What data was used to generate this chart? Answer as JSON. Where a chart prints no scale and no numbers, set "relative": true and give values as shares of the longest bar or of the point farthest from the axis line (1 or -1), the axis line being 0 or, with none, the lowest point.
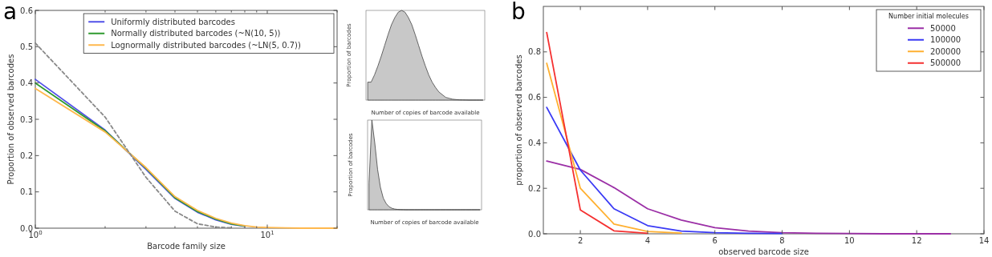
{
  "chart_data": [
    {
      "type": "line",
      "title": "a",
      "xlabel": "Barcode family size",
      "ylabel": "Proportion of observed barcodes",
      "log": "x",
      "xlim": [
        1,
        20
      ],
      "xticks": [
        {
          "value": 1,
          "label": "10$^{0}$"
        },
        {
          "value": 2,
          "label": null
        },
        {
          "value": 3,
          "label": null
        },
        {
          "value": 4,
          "label": null
        },
        {
          "value": 5,
          "label": null
        },
        {
          "value": 6,
          "label": null
        },
        {
          "value": 7,
          "label": null
        },
        {
          "value": 8,
          "label": null
        },
        {
          "value": 9,
          "label": null
        },
        {
          "value": 10,
          "label": "10$^{1}$"
        },
        {
          "value": 20,
          "label": null
        }
      ],
      "ylim": [
        0,
        0.6
      ],
      "yticks": [
        {
          "value": 0,
          "label": "0.0"
        },
        0.1,
        0.2,
        0.3,
        0.4,
        0.5,
        0.6
      ],
      "legend": "top right",
      "x": [
        1,
        2,
        3,
        4,
        5,
        6,
        7,
        8,
        9,
        10,
        12,
        14,
        16,
        18,
        20
      ],
      "series": [
        {
          "name": "Uniformly distributed barcodes",
          "color": "#5050e8",
          "values": [
            0.41,
            0.27,
            0.162,
            0.082,
            0.044,
            0.023,
            0.011,
            0.005,
            null,
            null,
            null,
            null,
            null,
            null,
            null
          ]
        },
        {
          "name": "Normally distributed barcodes (~N(10, 5))",
          "color": "#2e9a2e",
          "values": [
            0.4,
            0.268,
            0.165,
            0.084,
            0.046,
            0.025,
            0.012,
            0.006,
            null,
            null,
            null,
            null,
            null,
            null,
            null
          ]
        },
        {
          "name": "Lognormally distributed barcodes (~LN(5, 0.7))",
          "color": "#ffb84d",
          "values": [
            0.385,
            0.265,
            0.167,
            0.087,
            0.049,
            0.027,
            0.014,
            0.007,
            0.003,
            0.002,
            0.001,
            0,
            0,
            0,
            0
          ]
        },
        {
          "color": "#888888",
          "line_style": "dashed",
          "x": [
            1,
            2,
            3,
            4,
            5,
            6,
            7
          ],
          "values": [
            0.51,
            0.306,
            0.14,
            0.047,
            0.012,
            0.003,
            0.001
          ]
        }
      ]
    },
    {
      "type": "area",
      "relative": true,
      "xlabel": "Number of copies of barcode available",
      "ylabel": "Proportion of barcodes",
      "categories": [
        null,
        null,
        null,
        null,
        null,
        null,
        null,
        null,
        null,
        null,
        null,
        null,
        null,
        null,
        null,
        null,
        null,
        null,
        null,
        null,
        null,
        null,
        null,
        null,
        null,
        null,
        null,
        null,
        null,
        null,
        null,
        null,
        null,
        null,
        null
      ],
      "series": [
        {
          "color": "#c8c8c8",
          "values": [
            0.2,
            0.2,
            0.28,
            0.38,
            0.49,
            0.61,
            0.73,
            0.84,
            0.92,
            0.98,
            1,
            0.98,
            0.92,
            0.84,
            0.73,
            0.61,
            0.49,
            0.38,
            0.28,
            0.2,
            0.14,
            0.09,
            0.06,
            0.03,
            0.02,
            0.01,
            0.006,
            0.003,
            0.002,
            0.001,
            0,
            0,
            0,
            0,
            0
          ]
        }
      ]
    },
    {
      "type": "area",
      "relative": true,
      "xlabel": "Number of copies of barcode available",
      "ylabel": "Proportion of barcodes",
      "categories": [
        null,
        null,
        null,
        null,
        null,
        null,
        null,
        null,
        null,
        null,
        null,
        null,
        null,
        null,
        null,
        null,
        null,
        null,
        null,
        null,
        null,
        null,
        null,
        null,
        null,
        null,
        null,
        null,
        null,
        null,
        null,
        null,
        null,
        null,
        null,
        null,
        null,
        null,
        null,
        null
      ],
      "series": [
        {
          "color": "#c8c8c8",
          "values": [
            0.3,
            1,
            0.75,
            0.45,
            0.25,
            0.13,
            0.07,
            0.035,
            0.017,
            0.008,
            0.004,
            0.002,
            0.001,
            0,
            0,
            0,
            0,
            0,
            0,
            0,
            0,
            0,
            0,
            0,
            0,
            0,
            0,
            0,
            0,
            0,
            0,
            0,
            0,
            0,
            0,
            0,
            0,
            0,
            0,
            0
          ]
        }
      ]
    },
    {
      "type": "line",
      "title": "b",
      "xlabel": "observed barcode size",
      "ylabel": "proportion of observed barcodes",
      "legend_title": "Number initial molecules",
      "legend": "top right",
      "xlim": [
        0.9,
        14
      ],
      "xticks": [
        2,
        4,
        6,
        8,
        10,
        12,
        14
      ],
      "ylim": [
        0,
        1
      ],
      "yticks": [
        {
          "value": 0,
          "label": "0.0"
        },
        0.2,
        0.4,
        0.6,
        0.8
      ],
      "x": [
        1,
        2,
        3,
        4,
        5,
        6,
        7,
        8,
        9,
        10,
        11,
        12,
        13
      ],
      "series": [
        {
          "name": "50000",
          "color": "#9b2fa6",
          "values": [
            0.32,
            0.283,
            0.203,
            0.11,
            0.06,
            0.027,
            0.012,
            0.005,
            0.002,
            0.001,
            0,
            0,
            0
          ]
        },
        {
          "name": "100000",
          "color": "#3a3af5",
          "x": [
            1,
            2,
            3,
            4,
            5,
            6,
            7,
            8
          ],
          "values": [
            0.556,
            0.28,
            0.11,
            0.036,
            0.012,
            0.005,
            0.002,
            0.001
          ]
        },
        {
          "name": "200000",
          "color": "#ffb030",
          "x": [
            1,
            2,
            3,
            4,
            5
          ],
          "values": [
            0.75,
            0.2,
            0.043,
            0.01,
            0.003
          ]
        },
        {
          "name": "500000",
          "color": "#f53030",
          "x": [
            1,
            2,
            3,
            4
          ],
          "values": [
            0.885,
            0.105,
            0.013,
            0.002
          ]
        }
      ]
    }
  ]
}
